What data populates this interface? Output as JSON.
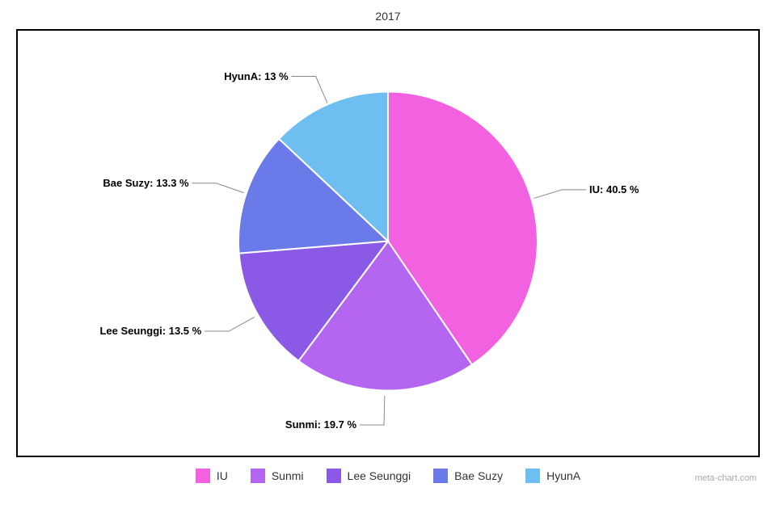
{
  "chart": {
    "type": "pie",
    "title": "2017",
    "title_fontsize": 14,
    "title_color": "#333333",
    "background_color": "#ffffff",
    "frame_border_color": "#000000",
    "frame_border_width": 2,
    "radius": 185,
    "slice_gap_color": "#ffffff",
    "slice_gap_width": 2,
    "slices": [
      {
        "name": "IU",
        "value": 40.5,
        "color": "#f262e0",
        "label": "IU: 40.5 %"
      },
      {
        "name": "Sunmi",
        "value": 19.7,
        "color": "#b566f0",
        "label": "Sunmi: 19.7 %"
      },
      {
        "name": "Lee Seunggi",
        "value": 13.5,
        "color": "#8a5ae6",
        "label": "Lee Seunggi: 13.5 %"
      },
      {
        "name": "Bae Suzy",
        "value": 13.3,
        "color": "#6a7ae8",
        "label": "Bae Suzy: 13.3 %"
      },
      {
        "name": "HyunA",
        "value": 13.0,
        "color": "#6fbef2",
        "label": "HyunA: 13 %"
      }
    ],
    "label_fontsize": 13,
    "label_fontweight": "bold",
    "label_color": "#000000",
    "leader_color": "#888888",
    "legend": {
      "position": "bottom",
      "fontsize": 14,
      "swatch_size": 18,
      "items": [
        {
          "label": "IU",
          "color": "#f262e0"
        },
        {
          "label": "Sunmi",
          "color": "#b566f0"
        },
        {
          "label": "Lee Seunggi",
          "color": "#8a5ae6"
        },
        {
          "label": "Bae Suzy",
          "color": "#6a7ae8"
        },
        {
          "label": "HyunA",
          "color": "#6fbef2"
        }
      ]
    },
    "watermark": "meta-chart.com",
    "watermark_color": "#aaaaaa",
    "watermark_fontsize": 11
  }
}
